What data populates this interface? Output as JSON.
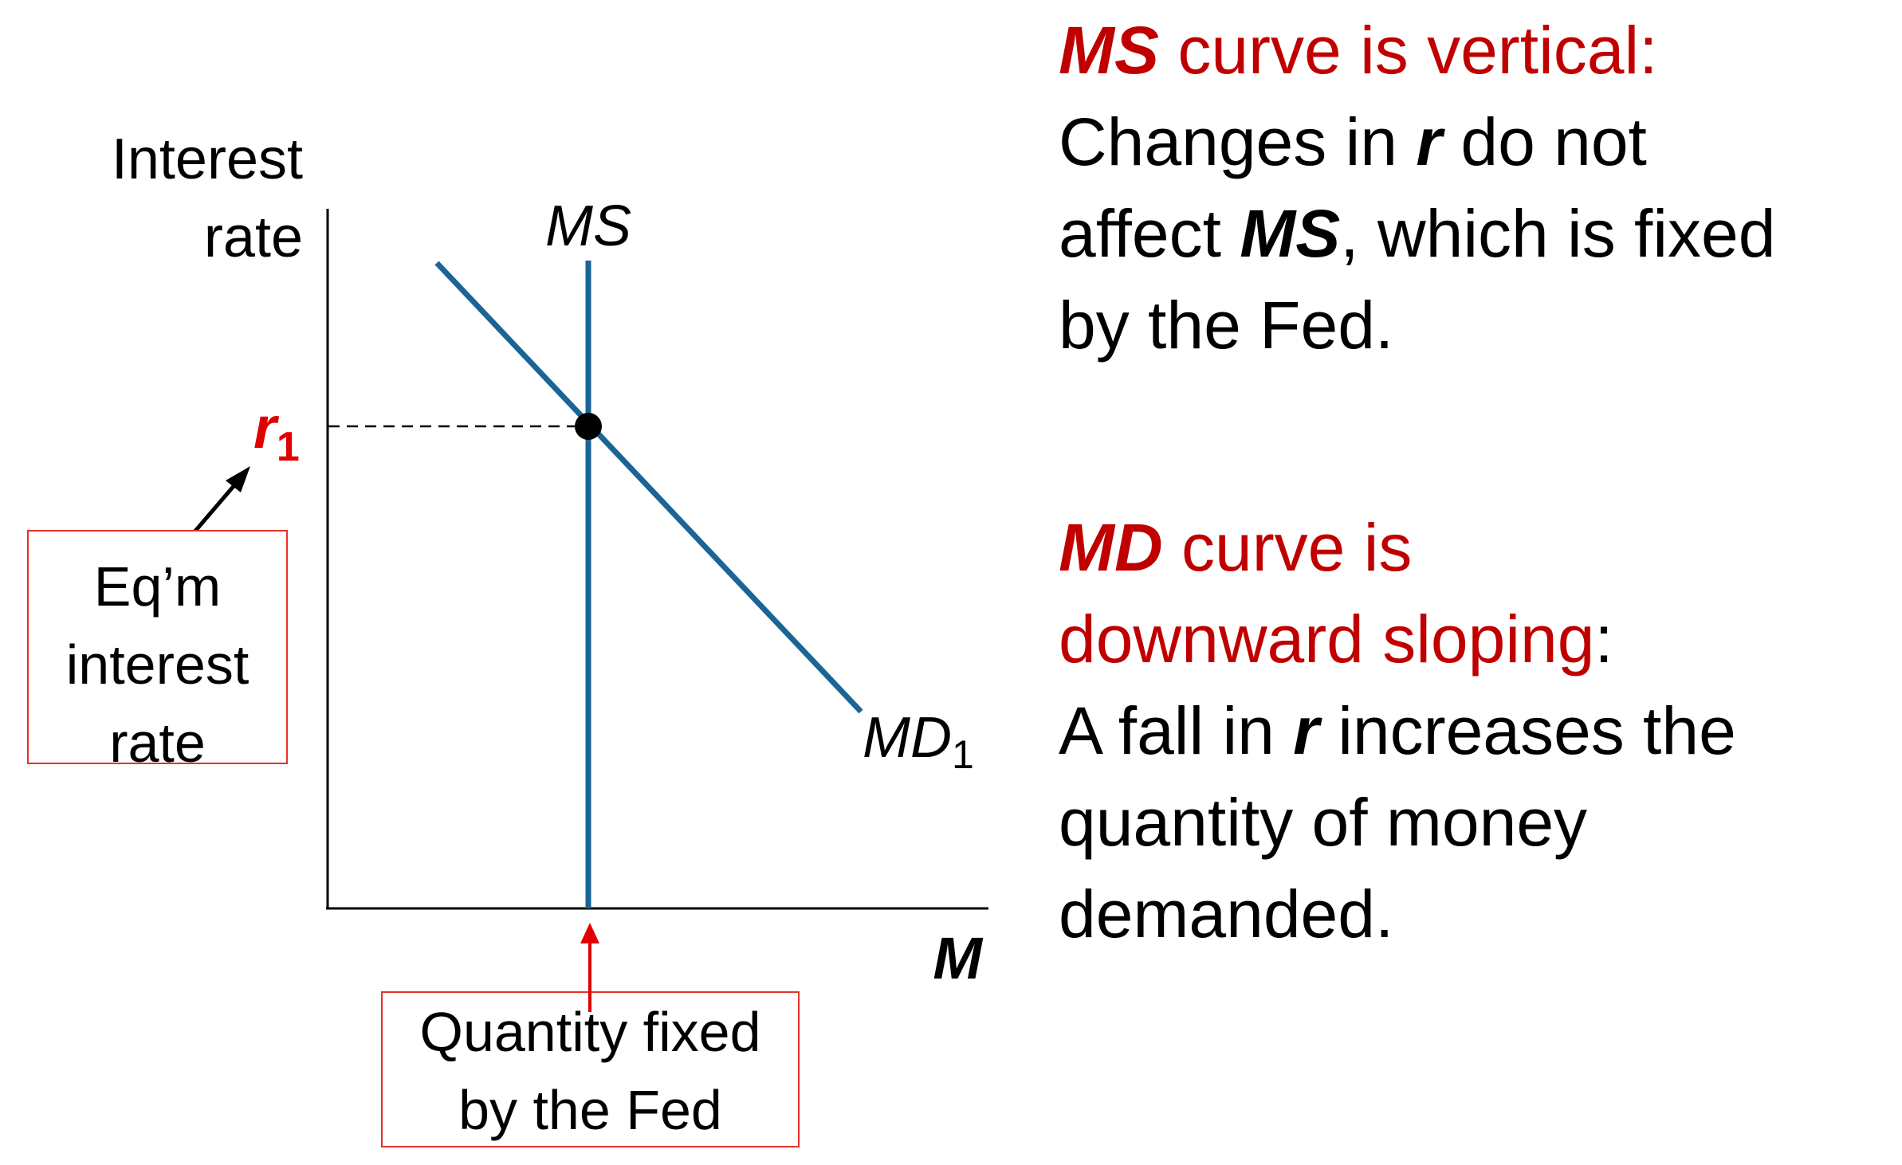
{
  "axes": {
    "y_label_line1": "Interest",
    "y_label_line2": "rate",
    "x_label": "M"
  },
  "curves": {
    "ms_label": "MS",
    "md_label": "MD",
    "md_subscript": "1"
  },
  "equilibrium": {
    "r_symbol": "r",
    "r_subscript": "1"
  },
  "callouts": {
    "eqm_line1": "Eq’m",
    "eqm_line2": "interest",
    "eqm_line3": "rate",
    "fed_line1": "Quantity fixed",
    "fed_line2": "by the Fed"
  },
  "notes": {
    "ms": {
      "head_bold": "MS",
      "head_rest": " curve is vertical:",
      "l2_a": "Changes in ",
      "l2_b": "r",
      "l2_c": " do not",
      "l3_a": "affect ",
      "l3_b": "MS",
      "l3_c": ", which is fixed",
      "l4": "by the Fed."
    },
    "md": {
      "head_bold": "MD",
      "head_rest": " curve is",
      "l2_red": "downward sloping",
      "l2_colon": ":",
      "l3_a": "A fall in ",
      "l3_b": "r",
      "l3_c": " increases the",
      "l4": "quantity of money",
      "l5": "demanded."
    }
  },
  "colors": {
    "curve": "#1a6496",
    "accent_red": "#c00000",
    "callout_border": "#e8302a"
  }
}
